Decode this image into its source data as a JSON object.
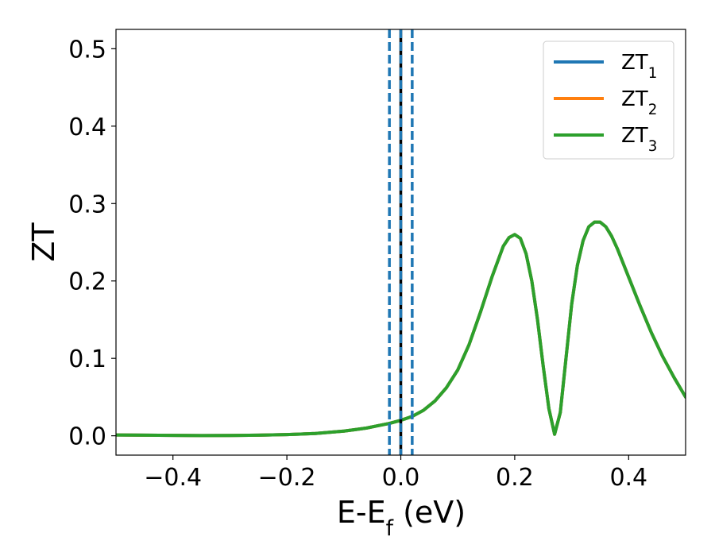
{
  "chart_data": {
    "type": "line",
    "xlabel": "E-E_f (eV)",
    "ylabel": "ZT",
    "xlim": [
      -0.5,
      0.5
    ],
    "ylim": [
      -0.025,
      0.525
    ],
    "x_ticks": [
      -0.4,
      -0.2,
      0.0,
      0.2,
      0.4
    ],
    "x_tick_labels": [
      "−0.4",
      "−0.2",
      "0.0",
      "0.2",
      "0.4"
    ],
    "y_ticks": [
      0.0,
      0.1,
      0.2,
      0.3,
      0.4,
      0.5
    ],
    "y_tick_labels": [
      "0.0",
      "0.1",
      "0.2",
      "0.3",
      "0.4",
      "0.5"
    ],
    "grid": false,
    "legend_position": "top-right",
    "x": [
      -0.5,
      -0.45,
      -0.4,
      -0.35,
      -0.3,
      -0.25,
      -0.2,
      -0.15,
      -0.1,
      -0.08,
      -0.06,
      -0.04,
      -0.02,
      0.0,
      0.02,
      0.04,
      0.06,
      0.08,
      0.1,
      0.12,
      0.14,
      0.16,
      0.18,
      0.19,
      0.2,
      0.21,
      0.22,
      0.23,
      0.24,
      0.25,
      0.26,
      0.27,
      0.28,
      0.29,
      0.3,
      0.31,
      0.32,
      0.33,
      0.34,
      0.35,
      0.36,
      0.37,
      0.38,
      0.4,
      0.42,
      0.44,
      0.46,
      0.48,
      0.5
    ],
    "series": [
      {
        "name": "ZT_1",
        "color": "#1f77b4",
        "values": [
          0.001,
          0.0008,
          0.0005,
          0.0003,
          0.0004,
          0.0008,
          0.0015,
          0.003,
          0.006,
          0.008,
          0.01,
          0.013,
          0.016,
          0.02,
          0.025,
          0.033,
          0.045,
          0.062,
          0.085,
          0.118,
          0.16,
          0.205,
          0.245,
          0.256,
          0.26,
          0.255,
          0.235,
          0.2,
          0.15,
          0.09,
          0.035,
          0.002,
          0.03,
          0.1,
          0.17,
          0.22,
          0.252,
          0.27,
          0.276,
          0.276,
          0.27,
          0.258,
          0.242,
          0.205,
          0.168,
          0.133,
          0.102,
          0.075,
          0.05
        ]
      },
      {
        "name": "ZT_2",
        "color": "#ff7f0e",
        "values": [
          0.001,
          0.0008,
          0.0005,
          0.0003,
          0.0004,
          0.0008,
          0.0015,
          0.003,
          0.006,
          0.008,
          0.01,
          0.013,
          0.016,
          0.02,
          0.025,
          0.033,
          0.045,
          0.062,
          0.085,
          0.118,
          0.16,
          0.205,
          0.245,
          0.256,
          0.26,
          0.255,
          0.235,
          0.2,
          0.15,
          0.09,
          0.035,
          0.002,
          0.03,
          0.1,
          0.17,
          0.22,
          0.252,
          0.27,
          0.276,
          0.276,
          0.27,
          0.258,
          0.242,
          0.205,
          0.168,
          0.133,
          0.102,
          0.075,
          0.05
        ]
      },
      {
        "name": "ZT_3",
        "color": "#2ca02c",
        "values": [
          0.001,
          0.0008,
          0.0005,
          0.0003,
          0.0004,
          0.0008,
          0.0015,
          0.003,
          0.006,
          0.008,
          0.01,
          0.013,
          0.016,
          0.02,
          0.025,
          0.033,
          0.045,
          0.062,
          0.085,
          0.118,
          0.16,
          0.205,
          0.245,
          0.256,
          0.26,
          0.255,
          0.235,
          0.2,
          0.15,
          0.09,
          0.035,
          0.002,
          0.03,
          0.1,
          0.17,
          0.22,
          0.252,
          0.27,
          0.276,
          0.276,
          0.27,
          0.258,
          0.242,
          0.205,
          0.168,
          0.133,
          0.102,
          0.075,
          0.05
        ]
      }
    ],
    "vertical_lines": [
      {
        "x": 0.0,
        "style": "solid",
        "color": "#000000"
      },
      {
        "x": -0.02,
        "style": "dashed",
        "color": "#1f77b4"
      },
      {
        "x": 0.0,
        "style": "dashed",
        "color": "#1f77b4"
      },
      {
        "x": 0.02,
        "style": "dashed",
        "color": "#1f77b4"
      }
    ]
  }
}
